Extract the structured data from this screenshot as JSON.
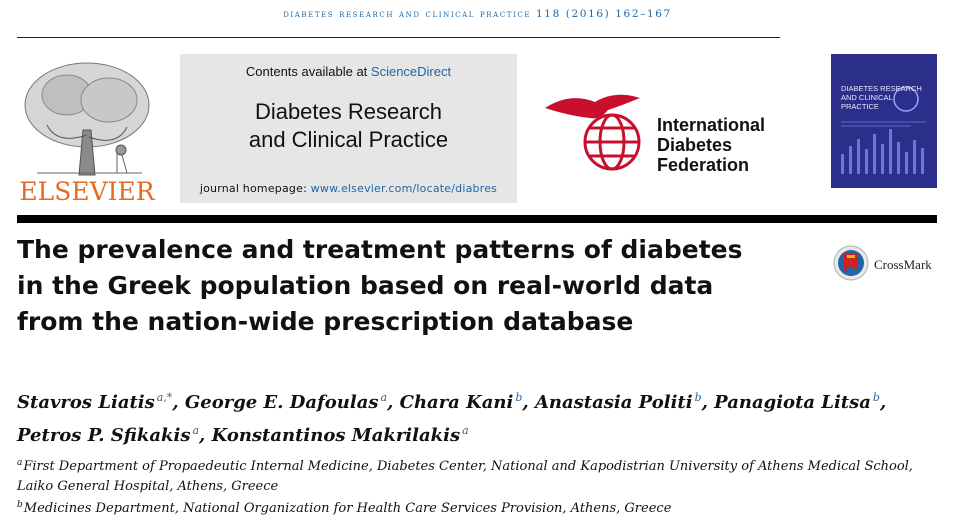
{
  "running_head": {
    "journal": "diabetes research and clinical practice",
    "citation": "118 (2016) 162–167"
  },
  "publisher": {
    "logo_text": "ELSEVIER"
  },
  "sciencedirect_box": {
    "contents_prefix": "Contents available at ",
    "contents_link": "ScienceDirect",
    "journal_line1": "Diabetes Research",
    "journal_line2": "and Clinical Practice",
    "homepage_prefix": "journal homepage: ",
    "homepage_link": "www.elsevier.com/locate/diabres"
  },
  "idf": {
    "line1": "International",
    "line2": "Diabetes",
    "line3": "Federation"
  },
  "cover": {
    "title": "Diabetes Research and Clinical Practice"
  },
  "article": {
    "title_line1": "The prevalence and treatment patterns of diabetes",
    "title_line2": "in the Greek population based on real-world data",
    "title_line3": "from the nation-wide prescription database"
  },
  "crossmark": {
    "label": "CrossMark"
  },
  "authors": [
    {
      "name": "Stavros Liatis",
      "aff": "a,*",
      "sep": ", "
    },
    {
      "name": "George E. Dafoulas",
      "aff": "a",
      "sep": ", "
    },
    {
      "name": "Chara Kani",
      "aff": "b",
      "sep": ", "
    },
    {
      "name": "Anastasia Politi",
      "aff": "b",
      "sep": ", "
    },
    {
      "name": "Panagiota Litsa",
      "aff": "b",
      "sep": ","
    },
    {
      "name": "Petros P. Sfikakis",
      "aff": "a",
      "sep": ", "
    },
    {
      "name": "Konstantinos Makrilakis",
      "aff": "a",
      "sep": ""
    }
  ],
  "affiliations": {
    "a_mark": "a",
    "a_line1": "First Department of Propaedeutic Internal Medicine, Diabetes Center, National and Kapodistrian University of Athens Medical School,",
    "a_line2": "Laiko General Hospital, Athens, Greece",
    "b_mark": "b",
    "b_line1": "Medicines Department, National Organization for Health Care Services Provision, Athens, Greece"
  },
  "colors": {
    "link_blue": "#1f66a3",
    "elsevier_orange": "#e66a1f",
    "idf_red": "#c8102e",
    "cover_blue": "#2b2f8a"
  }
}
